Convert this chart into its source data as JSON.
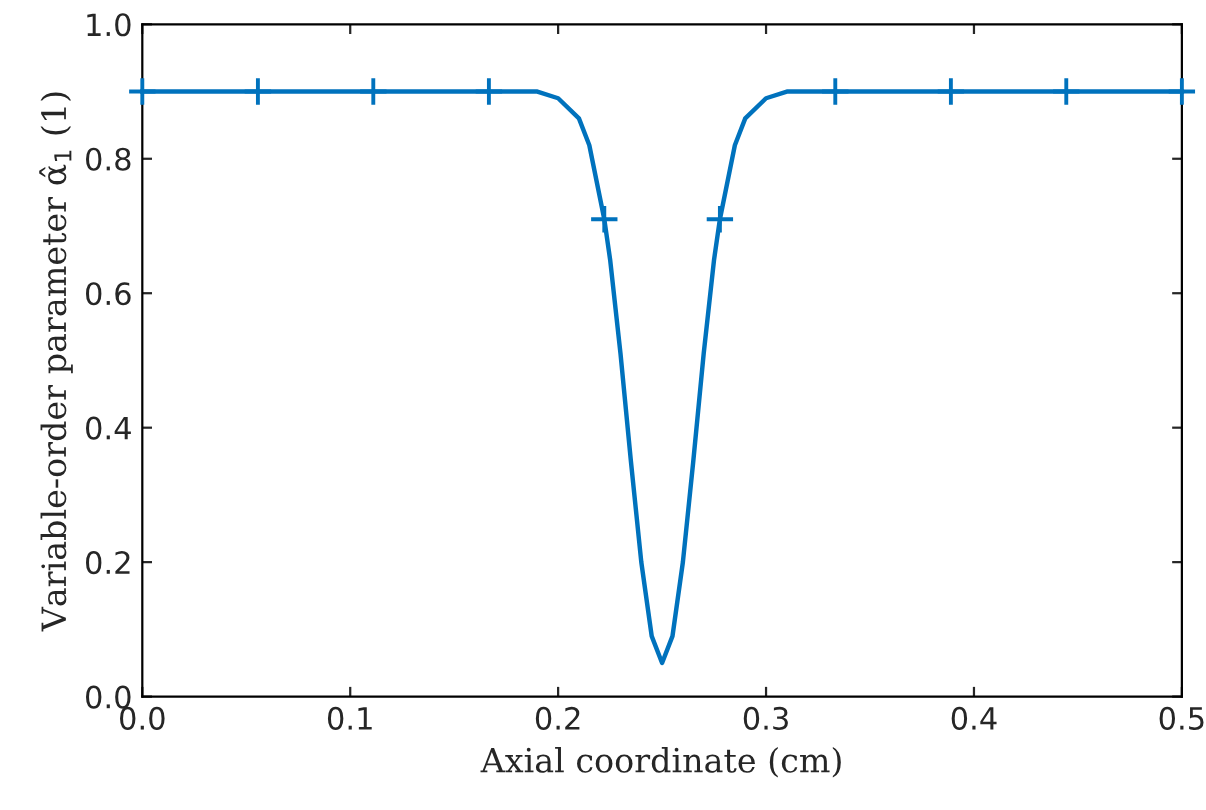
{
  "chart_data": {
    "type": "line",
    "xlabel": "Axial coordinate (cm)",
    "ylabel": "Variable-order parameter α̂$_{1}$ (1)",
    "xlim": [
      0,
      0.5
    ],
    "ylim": [
      0,
      1
    ],
    "xticks": [
      {
        "value": 0,
        "label": "0.0"
      },
      0.1,
      0.2,
      0.3,
      0.4,
      0.5
    ],
    "yticks": [
      {
        "value": 0,
        "label": "0.0"
      },
      0.2,
      0.4,
      0.6,
      0.8,
      {
        "value": 1,
        "label": "1.0"
      }
    ],
    "grid": false,
    "legend": false,
    "series": [
      {
        "color": "#0072bd",
        "marker": "none",
        "line_style": "solid",
        "x": [
          0,
          0.05,
          0.1,
          0.15,
          0.19,
          0.2,
          0.21,
          0.215,
          0.2222,
          0.225,
          0.23,
          0.235,
          0.24,
          0.245,
          0.25,
          0.255,
          0.26,
          0.265,
          0.27,
          0.275,
          0.2778,
          0.285,
          0.29,
          0.3,
          0.31,
          0.35,
          0.4,
          0.45,
          0.5
        ],
        "values": [
          0.9,
          0.9,
          0.9,
          0.9,
          0.9,
          0.89,
          0.86,
          0.82,
          0.71,
          0.65,
          0.51,
          0.35,
          0.2,
          0.09,
          0.05,
          0.09,
          0.2,
          0.35,
          0.51,
          0.65,
          0.71,
          0.82,
          0.86,
          0.89,
          0.9,
          0.9,
          0.9,
          0.9,
          0.9
        ]
      },
      {
        "type": "scatter",
        "color": "#0072bd",
        "marker": "cross",
        "x": [
          0,
          0.0556,
          0.1111,
          0.1667,
          0.2222,
          0.2778,
          0.3333,
          0.3889,
          0.4444,
          0.5
        ],
        "values": [
          0.9,
          0.9,
          0.9,
          0.9,
          0.71,
          0.71,
          0.9,
          0.9,
          0.9,
          0.9
        ]
      }
    ]
  }
}
